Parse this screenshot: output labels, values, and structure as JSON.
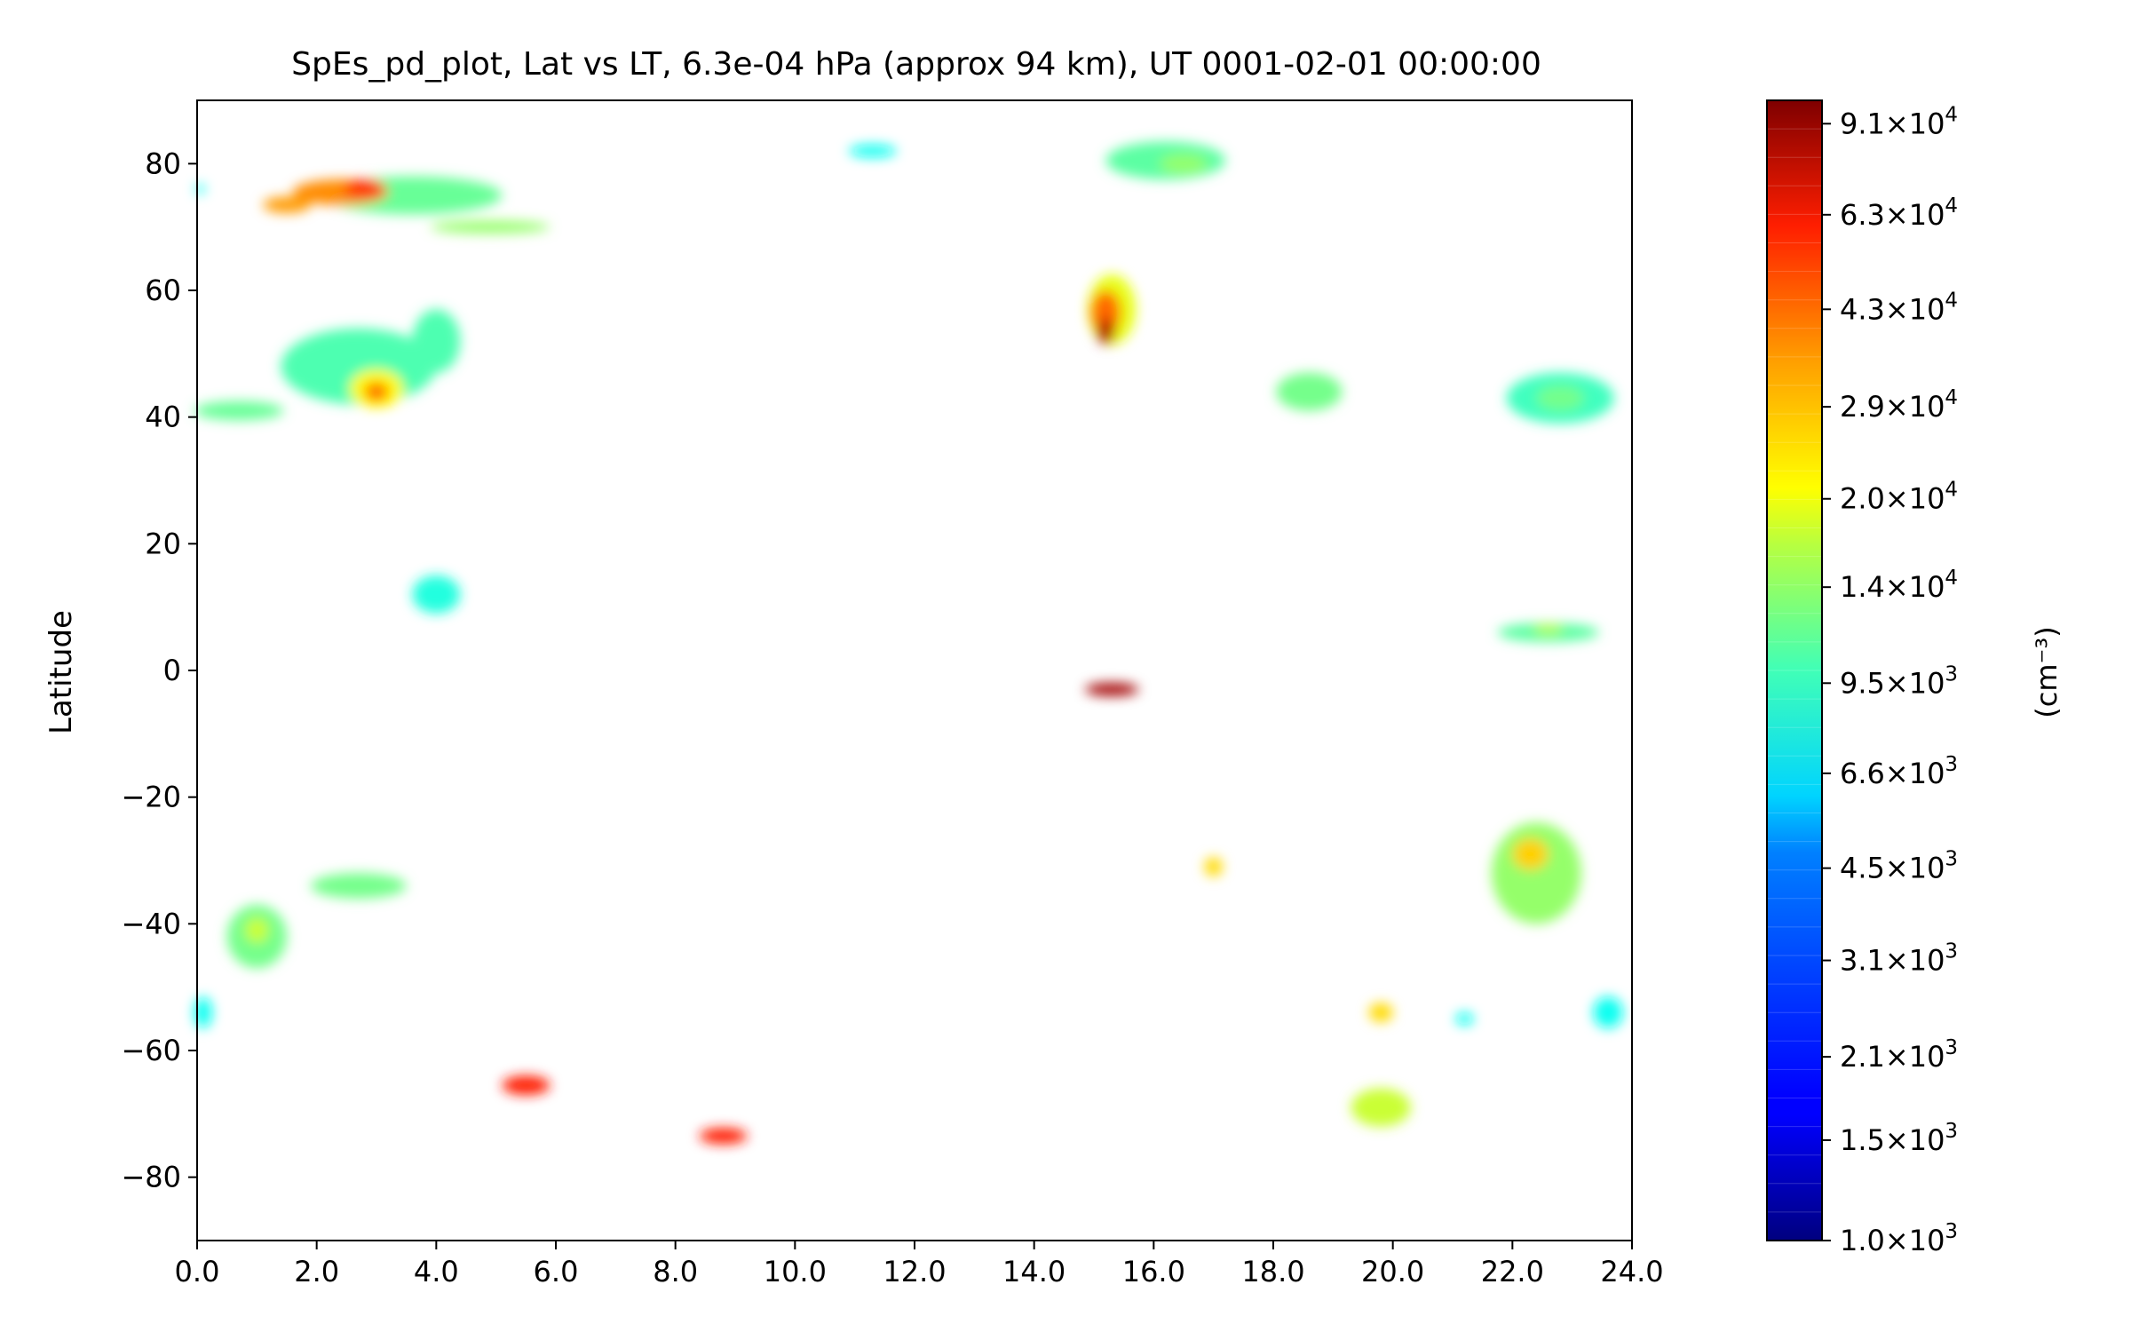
{
  "chart_data": {
    "type": "heatmap",
    "title": "SpEs_pd_plot, Lat vs LT, 6.3e-04 hPa (approx 94 km), UT 0001-02-01 00:00:00",
    "xlabel": "",
    "ylabel": "Latitude",
    "xlim": [
      0,
      24
    ],
    "ylim": [
      -90,
      90
    ],
    "x_ticks": [
      "0.0",
      "2.0",
      "4.0",
      "6.0",
      "8.0",
      "10.0",
      "12.0",
      "14.0",
      "16.0",
      "18.0",
      "20.0",
      "22.0",
      "24.0"
    ],
    "y_ticks": [
      "80",
      "60",
      "40",
      "20",
      "0",
      "−20",
      "−40",
      "−60",
      "−80"
    ],
    "colorbar": {
      "label": "(cm⁻³)",
      "scale": "log",
      "range": [
        1000,
        100000
      ],
      "colormap": "jet",
      "ticks": [
        {
          "mant": "9.1",
          "exp": "4"
        },
        {
          "mant": "6.3",
          "exp": "4"
        },
        {
          "mant": "4.3",
          "exp": "4"
        },
        {
          "mant": "2.9",
          "exp": "4"
        },
        {
          "mant": "2.0",
          "exp": "4"
        },
        {
          "mant": "1.4",
          "exp": "4"
        },
        {
          "mant": "9.5",
          "exp": "3"
        },
        {
          "mant": "6.6",
          "exp": "3"
        },
        {
          "mant": "4.5",
          "exp": "3"
        },
        {
          "mant": "3.1",
          "exp": "3"
        },
        {
          "mant": "2.1",
          "exp": "3"
        },
        {
          "mant": "1.5",
          "exp": "3"
        },
        {
          "mant": "1.0",
          "exp": "3"
        }
      ]
    },
    "patches": [
      {
        "lt": 3.6,
        "lat": 75,
        "w": 3.0,
        "h": 6,
        "value": 9000
      },
      {
        "lt": 2.4,
        "lat": 75.5,
        "w": 1.6,
        "h": 4,
        "value": 30000
      },
      {
        "lt": 2.8,
        "lat": 76,
        "w": 0.7,
        "h": 3,
        "value": 45000
      },
      {
        "lt": 1.5,
        "lat": 73.5,
        "w": 0.8,
        "h": 2.5,
        "value": 28000
      },
      {
        "lt": 4.9,
        "lat": 70,
        "w": 2.0,
        "h": 2,
        "value": 11000
      },
      {
        "lt": 0.05,
        "lat": 76,
        "w": 0.15,
        "h": 1.5,
        "value": 6000
      },
      {
        "lt": 11.3,
        "lat": 82,
        "w": 0.8,
        "h": 2,
        "value": 6000
      },
      {
        "lt": 16.2,
        "lat": 80.5,
        "w": 2.0,
        "h": 6,
        "value": 8500
      },
      {
        "lt": 16.5,
        "lat": 80,
        "w": 0.8,
        "h": 3,
        "value": 11000
      },
      {
        "lt": 15.3,
        "lat": 57,
        "w": 0.8,
        "h": 11,
        "value": 16000
      },
      {
        "lt": 15.2,
        "lat": 56.5,
        "w": 0.5,
        "h": 7,
        "value": 35000
      },
      {
        "lt": 15.2,
        "lat": 53.5,
        "w": 0.3,
        "h": 4,
        "value": 80000
      },
      {
        "lt": 2.7,
        "lat": 48,
        "w": 2.6,
        "h": 12,
        "value": 8000
      },
      {
        "lt": 3.0,
        "lat": 44.5,
        "w": 0.9,
        "h": 6,
        "value": 18000
      },
      {
        "lt": 3.0,
        "lat": 44,
        "w": 0.4,
        "h": 3,
        "value": 35000
      },
      {
        "lt": 0.7,
        "lat": 41,
        "w": 1.5,
        "h": 3,
        "value": 9000
      },
      {
        "lt": 4.0,
        "lat": 52,
        "w": 0.8,
        "h": 10,
        "value": 8000
      },
      {
        "lt": 18.6,
        "lat": 44,
        "w": 1.1,
        "h": 6,
        "value": 9500
      },
      {
        "lt": 22.8,
        "lat": 43,
        "w": 1.8,
        "h": 8,
        "value": 7500
      },
      {
        "lt": 22.8,
        "lat": 43,
        "w": 0.8,
        "h": 4,
        "value": 9500
      },
      {
        "lt": 4.0,
        "lat": 12,
        "w": 0.8,
        "h": 6,
        "value": 6500
      },
      {
        "lt": 22.6,
        "lat": 6,
        "w": 1.7,
        "h": 3,
        "value": 8500
      },
      {
        "lt": 22.6,
        "lat": 6.5,
        "w": 0.5,
        "h": 1.5,
        "value": 13000
      },
      {
        "lt": 15.3,
        "lat": -3,
        "w": 0.9,
        "h": 2,
        "value": 85000
      },
      {
        "lt": 17.0,
        "lat": -31,
        "w": 0.3,
        "h": 3,
        "value": 21000
      },
      {
        "lt": 22.4,
        "lat": -32,
        "w": 1.5,
        "h": 16,
        "value": 11000
      },
      {
        "lt": 22.3,
        "lat": -29,
        "w": 0.6,
        "h": 5,
        "value": 22000
      },
      {
        "lt": 2.7,
        "lat": -34,
        "w": 1.6,
        "h": 4,
        "value": 9500
      },
      {
        "lt": 1.0,
        "lat": -42,
        "w": 1.0,
        "h": 10,
        "value": 9500
      },
      {
        "lt": 1.0,
        "lat": -41,
        "w": 0.4,
        "h": 4,
        "value": 14000
      },
      {
        "lt": 0.1,
        "lat": -54,
        "w": 0.3,
        "h": 5,
        "value": 6000
      },
      {
        "lt": 19.8,
        "lat": -54,
        "w": 0.4,
        "h": 3,
        "value": 21000
      },
      {
        "lt": 21.2,
        "lat": -55,
        "w": 0.3,
        "h": 2,
        "value": 6000
      },
      {
        "lt": 23.6,
        "lat": -54,
        "w": 0.5,
        "h": 5,
        "value": 6000
      },
      {
        "lt": 5.5,
        "lat": -65.5,
        "w": 0.8,
        "h": 3,
        "value": 50000
      },
      {
        "lt": 8.8,
        "lat": -73.5,
        "w": 0.8,
        "h": 2.5,
        "value": 50000
      },
      {
        "lt": 19.8,
        "lat": -69,
        "w": 1.0,
        "h": 6,
        "value": 14000
      }
    ]
  }
}
